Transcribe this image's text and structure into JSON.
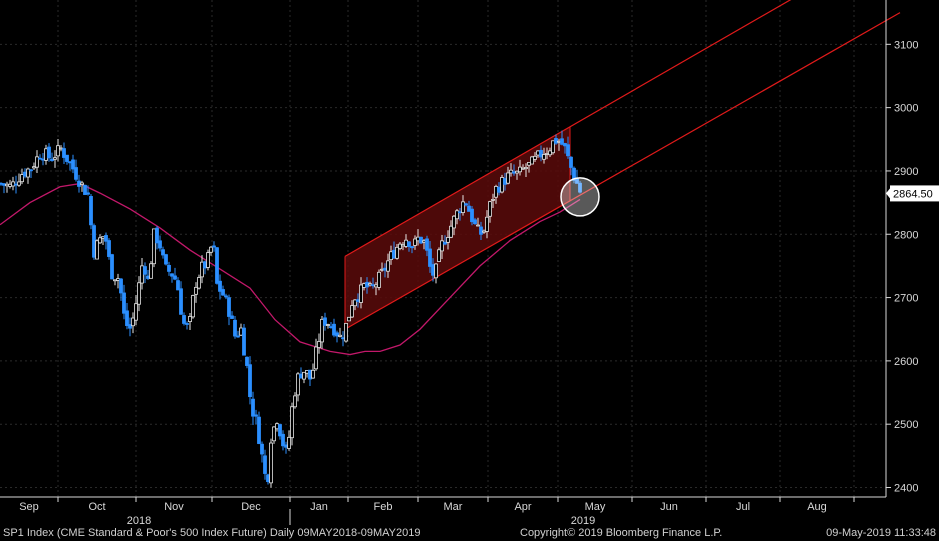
{
  "chart_data": {
    "type": "candlestick",
    "instrument": "SP1 Index (CME Standard & Poor's 500 Index Future)",
    "period": "Daily 09MAY2018-09MAY2019",
    "ylim": [
      2385,
      3170
    ],
    "y_ticks": [
      2400,
      2500,
      2600,
      2700,
      2800,
      2900,
      3000,
      3100
    ],
    "x_months": [
      "Sep",
      "Oct",
      "Nov",
      "Dec",
      "Jan",
      "Feb",
      "Mar",
      "Apr",
      "May",
      "Jun",
      "Jul",
      "Aug"
    ],
    "x_years": [
      "2018",
      "2019"
    ],
    "last_price": 2864.5,
    "last_price_label": "2864.50",
    "price_path": [
      {
        "t": 0,
        "v": 2880
      },
      {
        "t": 10,
        "v": 2875
      },
      {
        "t": 20,
        "v": 2895
      },
      {
        "t": 30,
        "v": 2905
      },
      {
        "t": 40,
        "v": 2930
      },
      {
        "t": 50,
        "v": 2920
      },
      {
        "t": 60,
        "v": 2935
      },
      {
        "t": 70,
        "v": 2910
      },
      {
        "t": 80,
        "v": 2880
      },
      {
        "t": 88,
        "v": 2860
      },
      {
        "t": 92,
        "v": 2770
      },
      {
        "t": 98,
        "v": 2790
      },
      {
        "t": 104,
        "v": 2800
      },
      {
        "t": 110,
        "v": 2740
      },
      {
        "t": 118,
        "v": 2730
      },
      {
        "t": 124,
        "v": 2660
      },
      {
        "t": 130,
        "v": 2650
      },
      {
        "t": 136,
        "v": 2700
      },
      {
        "t": 142,
        "v": 2760
      },
      {
        "t": 148,
        "v": 2720
      },
      {
        "t": 152,
        "v": 2800
      },
      {
        "t": 158,
        "v": 2790
      },
      {
        "t": 164,
        "v": 2745
      },
      {
        "t": 170,
        "v": 2740
      },
      {
        "t": 176,
        "v": 2725
      },
      {
        "t": 182,
        "v": 2660
      },
      {
        "t": 188,
        "v": 2650
      },
      {
        "t": 194,
        "v": 2720
      },
      {
        "t": 200,
        "v": 2745
      },
      {
        "t": 206,
        "v": 2755
      },
      {
        "t": 212,
        "v": 2790
      },
      {
        "t": 216,
        "v": 2720
      },
      {
        "t": 222,
        "v": 2705
      },
      {
        "t": 228,
        "v": 2680
      },
      {
        "t": 234,
        "v": 2640
      },
      {
        "t": 240,
        "v": 2650
      },
      {
        "t": 246,
        "v": 2590
      },
      {
        "t": 250,
        "v": 2530
      },
      {
        "t": 256,
        "v": 2500
      },
      {
        "t": 262,
        "v": 2440
      },
      {
        "t": 266,
        "v": 2400
      },
      {
        "t": 270,
        "v": 2480
      },
      {
        "t": 276,
        "v": 2510
      },
      {
        "t": 282,
        "v": 2470
      },
      {
        "t": 286,
        "v": 2450
      },
      {
        "t": 292,
        "v": 2540
      },
      {
        "t": 298,
        "v": 2580
      },
      {
        "t": 304,
        "v": 2585
      },
      {
        "t": 310,
        "v": 2570
      },
      {
        "t": 316,
        "v": 2620
      },
      {
        "t": 322,
        "v": 2665
      },
      {
        "t": 328,
        "v": 2660
      },
      {
        "t": 334,
        "v": 2650
      },
      {
        "t": 340,
        "v": 2635
      },
      {
        "t": 346,
        "v": 2660
      },
      {
        "t": 352,
        "v": 2700
      },
      {
        "t": 358,
        "v": 2705
      },
      {
        "t": 364,
        "v": 2720
      },
      {
        "t": 370,
        "v": 2710
      },
      {
        "t": 376,
        "v": 2725
      },
      {
        "t": 382,
        "v": 2740
      },
      {
        "t": 388,
        "v": 2760
      },
      {
        "t": 394,
        "v": 2775
      },
      {
        "t": 400,
        "v": 2790
      },
      {
        "t": 406,
        "v": 2795
      },
      {
        "t": 412,
        "v": 2780
      },
      {
        "t": 418,
        "v": 2795
      },
      {
        "t": 424,
        "v": 2785
      },
      {
        "t": 430,
        "v": 2740
      },
      {
        "t": 434,
        "v": 2735
      },
      {
        "t": 440,
        "v": 2780
      },
      {
        "t": 446,
        "v": 2800
      },
      {
        "t": 452,
        "v": 2820
      },
      {
        "t": 458,
        "v": 2840
      },
      {
        "t": 464,
        "v": 2855
      },
      {
        "t": 470,
        "v": 2830
      },
      {
        "t": 476,
        "v": 2805
      },
      {
        "t": 482,
        "v": 2800
      },
      {
        "t": 488,
        "v": 2840
      },
      {
        "t": 494,
        "v": 2870
      },
      {
        "t": 500,
        "v": 2880
      },
      {
        "t": 506,
        "v": 2890
      },
      {
        "t": 512,
        "v": 2895
      },
      {
        "t": 518,
        "v": 2895
      },
      {
        "t": 524,
        "v": 2905
      },
      {
        "t": 530,
        "v": 2910
      },
      {
        "t": 536,
        "v": 2920
      },
      {
        "t": 542,
        "v": 2930
      },
      {
        "t": 548,
        "v": 2935
      },
      {
        "t": 552,
        "v": 2945
      },
      {
        "t": 556,
        "v": 2950
      },
      {
        "t": 560,
        "v": 2945
      },
      {
        "t": 564,
        "v": 2935
      },
      {
        "t": 568,
        "v": 2915
      },
      {
        "t": 572,
        "v": 2895
      },
      {
        "t": 576,
        "v": 2880
      },
      {
        "t": 580,
        "v": 2864.5
      }
    ],
    "moving_average": [
      {
        "t": 0,
        "v": 2815
      },
      {
        "t": 30,
        "v": 2850
      },
      {
        "t": 60,
        "v": 2875
      },
      {
        "t": 80,
        "v": 2880
      },
      {
        "t": 100,
        "v": 2865
      },
      {
        "t": 130,
        "v": 2840
      },
      {
        "t": 160,
        "v": 2810
      },
      {
        "t": 190,
        "v": 2775
      },
      {
        "t": 220,
        "v": 2745
      },
      {
        "t": 250,
        "v": 2715
      },
      {
        "t": 275,
        "v": 2665
      },
      {
        "t": 300,
        "v": 2630
      },
      {
        "t": 330,
        "v": 2615
      },
      {
        "t": 350,
        "v": 2610
      },
      {
        "t": 365,
        "v": 2615
      },
      {
        "t": 380,
        "v": 2615
      },
      {
        "t": 400,
        "v": 2625
      },
      {
        "t": 420,
        "v": 2650
      },
      {
        "t": 450,
        "v": 2700
      },
      {
        "t": 480,
        "v": 2750
      },
      {
        "t": 510,
        "v": 2790
      },
      {
        "t": 540,
        "v": 2820
      },
      {
        "t": 560,
        "v": 2835
      },
      {
        "t": 580,
        "v": 2855
      }
    ],
    "channel": {
      "upper": {
        "t1": 345,
        "v1": 2765,
        "t2": 900,
        "v2": 3270
      },
      "lower": {
        "t1": 345,
        "v1": 2650,
        "t2": 900,
        "v2": 3150
      },
      "shade_t": [
        345,
        570
      ]
    },
    "highlight": {
      "t": 580,
      "v": 2859
    },
    "colors": {
      "background": "#000000",
      "grid": "#2a2a2a",
      "up": "#e6e6e6",
      "down": "#2b8fff",
      "moving_average": "#c2186a",
      "channel_line": "#e01a1a",
      "channel_fill": "#5a0a0a",
      "axis_text": "#d8d8d8",
      "last_price_box": "#ffffff"
    }
  },
  "footer": {
    "left": "SP1 Index (CME Standard & Poor's 500 Index Future)  Daily 09MAY2018-09MAY2019",
    "center": "Copyright© 2019 Bloomberg Finance L.P.",
    "right": "09-May-2019 11:33:48"
  }
}
